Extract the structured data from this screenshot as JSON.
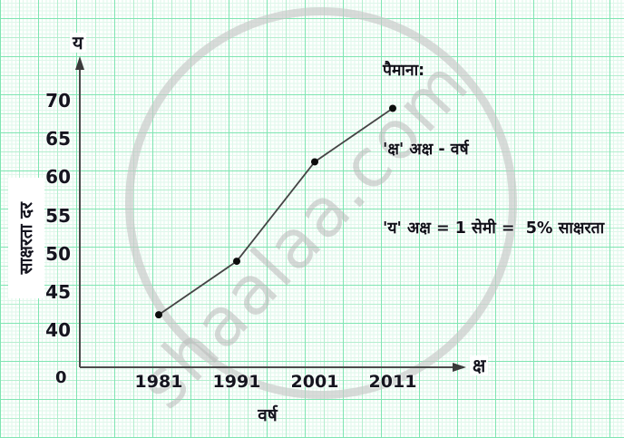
{
  "watermark": {
    "text": "shaalaa.com"
  },
  "legend": {
    "title": "पैमाना:",
    "x_scale": "'क्ष' अक्ष - वर्ष",
    "y_scale": "'य' अक्ष = 1 सेमी =  5% साक्षरता"
  },
  "axes": {
    "y_axis_symbol": "य",
    "x_axis_symbol": "क्ष",
    "origin_label": "0",
    "x_title": "वर्ष",
    "y_title": "साक्षरता दर"
  },
  "chart_data": {
    "type": "line",
    "title": "",
    "x": [
      1981,
      1991,
      2001,
      2011
    ],
    "series": [
      {
        "name": "साक्षरता दर (%)",
        "values": [
          42,
          49,
          62,
          69
        ]
      }
    ],
    "xlabel": "वर्ष",
    "ylabel": "साक्षरता दर",
    "y_ticks": [
      40,
      45,
      50,
      55,
      60,
      65,
      70
    ],
    "ylim": [
      40,
      70
    ],
    "grid": true,
    "legend_position": "top-right",
    "line_color": "#454545",
    "point_color": "#0d0d0d"
  }
}
